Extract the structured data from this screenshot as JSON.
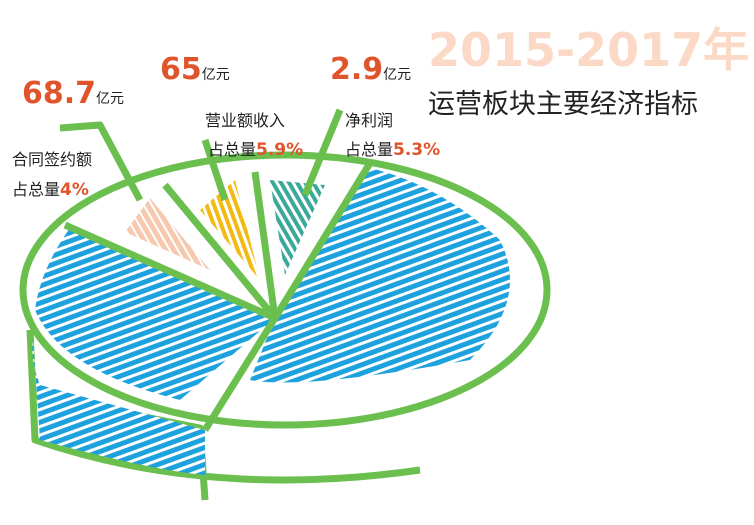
{
  "header": {
    "title": "2015-2017年",
    "subtitle": "运营板块主要经济指标"
  },
  "items": [
    {
      "label": "合同签约额",
      "amount": "68.7",
      "unit": "亿元",
      "share_prefix": "占总量",
      "share": "4%"
    },
    {
      "label": "营业额收入",
      "amount": "65",
      "unit": "亿元",
      "share_prefix": "占总量",
      "share": "5.9%"
    },
    {
      "label": "净利润",
      "amount": "2.9",
      "unit": "亿元",
      "share_prefix": "占总量",
      "share": "5.3%"
    }
  ]
}
